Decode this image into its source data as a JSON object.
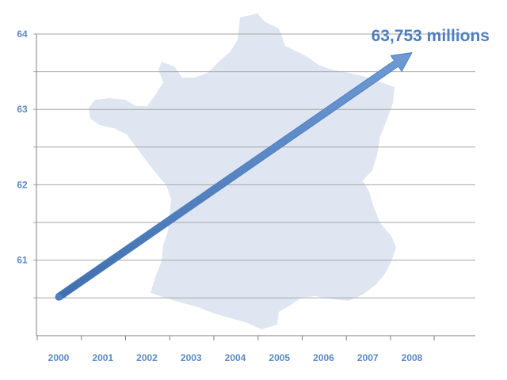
{
  "colors": {
    "accent": "#4f7fbf",
    "label": "#5b8ac4",
    "map_fill": "#dfe6f1",
    "grid": "#a6a6a6",
    "axis": "#7f7f7f"
  },
  "chart_data": {
    "type": "line",
    "x": [
      "2000",
      "2001",
      "2002",
      "2003",
      "2004",
      "2005",
      "2006",
      "2007",
      "2008"
    ],
    "series": [
      {
        "values": [
          60.51,
          null,
          null,
          null,
          null,
          null,
          null,
          null,
          63.753
        ]
      }
    ],
    "ylim": [
      60.25,
      64.0
    ],
    "yticks": [
      "61",
      "62",
      "63",
      "64"
    ],
    "grid": true,
    "background_image": "france-map",
    "annotation": "63,753 millions"
  }
}
